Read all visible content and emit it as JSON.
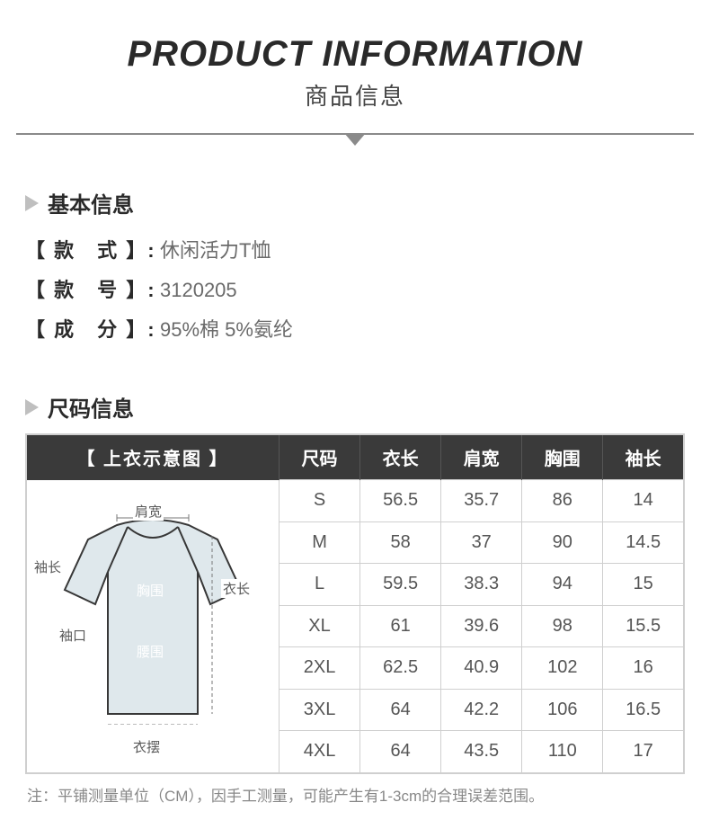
{
  "header": {
    "title_en": "PRODUCT INFORMATION",
    "title_cn": "商品信息"
  },
  "basic_info": {
    "section_title": "基本信息",
    "rows": [
      {
        "label": "【 款　式 】:",
        "value": "休闲活力T恤"
      },
      {
        "label": "【 款　号 】:",
        "value": "3120205"
      },
      {
        "label": "【 成　分 】:",
        "value": "95%棉  5%氨纶"
      }
    ]
  },
  "size_info": {
    "section_title": "尺码信息",
    "diagram_header": "【 上衣示意图 】",
    "columns": [
      "尺码",
      "衣长",
      "肩宽",
      "胸围",
      "袖长"
    ],
    "rows": [
      [
        "S",
        "56.5",
        "35.7",
        "86",
        "14"
      ],
      [
        "M",
        "58",
        "37",
        "90",
        "14.5"
      ],
      [
        "L",
        "59.5",
        "38.3",
        "94",
        "15"
      ],
      [
        "XL",
        "61",
        "39.6",
        "98",
        "15.5"
      ],
      [
        "2XL",
        "62.5",
        "40.9",
        "102",
        "16"
      ],
      [
        "3XL",
        "64",
        "42.2",
        "106",
        "16.5"
      ],
      [
        "4XL",
        "64",
        "43.5",
        "110",
        "17"
      ]
    ],
    "diagram_labels": {
      "shoulder": "肩宽",
      "sleeve": "袖长",
      "length": "衣长",
      "chest": "胸围",
      "cuff": "袖口",
      "waist": "腰围",
      "hem": "衣摆"
    },
    "note": "注：平铺测量单位（CM），因手工测量，可能产生有1-3cm的合理误差范围。",
    "colors": {
      "header_bg": "#3a3a3a",
      "header_fg": "#ffffff",
      "border": "#cfcfcf",
      "shirt_fill": "#dfe8ec",
      "shirt_stroke": "#373737"
    }
  }
}
